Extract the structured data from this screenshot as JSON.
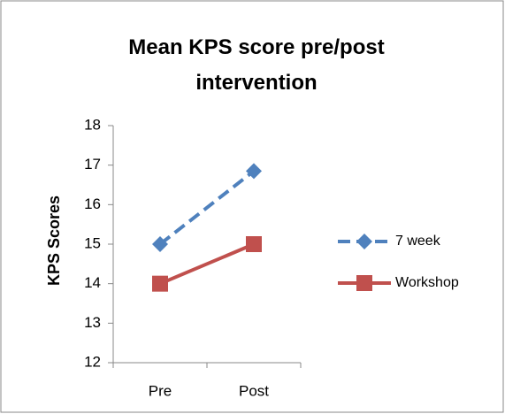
{
  "chart_data": {
    "type": "line",
    "title": "Mean KPS score pre/post intervention",
    "y_label": "KPS Scores",
    "categories": [
      "Pre",
      "Post"
    ],
    "series": [
      {
        "name": "7 week",
        "color": "#4f81bd",
        "dashed": true,
        "marker": "diamond",
        "values": [
          15,
          16.85
        ]
      },
      {
        "name": "Workshop",
        "color": "#c0504d",
        "dashed": false,
        "marker": "square",
        "values": [
          14,
          15
        ]
      }
    ],
    "ylim": [
      12,
      18
    ],
    "yticks": [
      12,
      13,
      14,
      15,
      16,
      17,
      18
    ],
    "grid": false,
    "legend": "right"
  }
}
